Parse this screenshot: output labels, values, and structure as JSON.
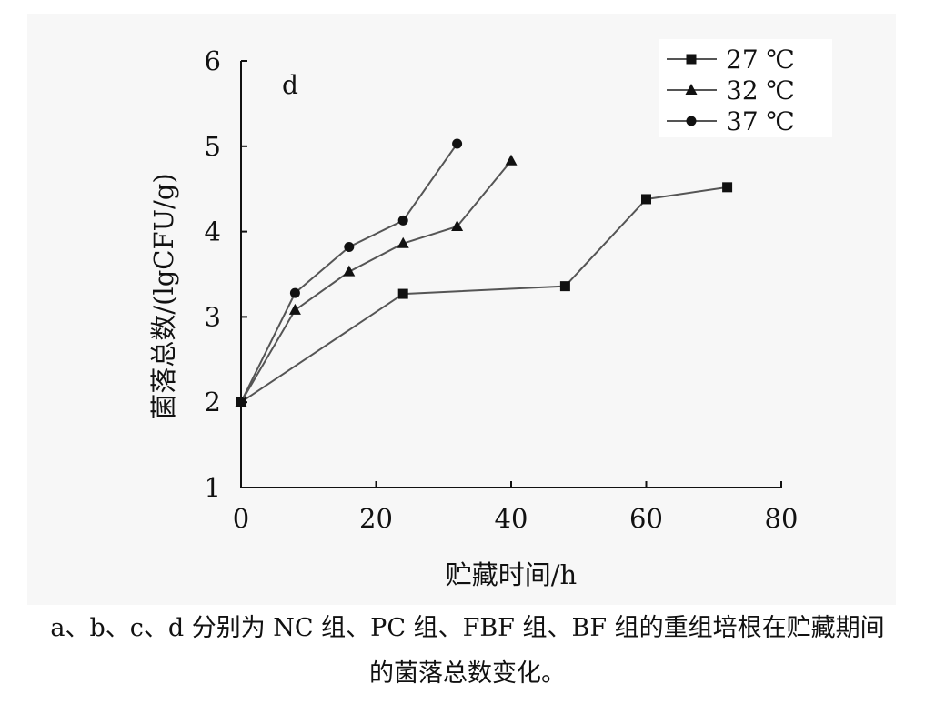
{
  "chart_data": {
    "type": "line",
    "panel_label": "d",
    "xlabel": "贮藏时间/h",
    "ylabel": "菌落总数/(lgCFU/g)",
    "xlim": [
      0,
      80
    ],
    "ylim": [
      1,
      6
    ],
    "x_ticks": [
      0,
      20,
      40,
      60,
      80
    ],
    "y_ticks": [
      1,
      2,
      3,
      4,
      5,
      6
    ],
    "grid": false,
    "legend_position": "top-right",
    "series": [
      {
        "name": "27 ℃",
        "marker": "square",
        "x": [
          0,
          24,
          48,
          60,
          72
        ],
        "y": [
          2.0,
          3.27,
          3.36,
          4.38,
          4.52
        ]
      },
      {
        "name": "32 ℃",
        "marker": "triangle",
        "x": [
          0,
          8,
          16,
          24,
          32,
          40
        ],
        "y": [
          2.0,
          3.08,
          3.53,
          3.86,
          4.06,
          4.83
        ]
      },
      {
        "name": "37 ℃",
        "marker": "circle",
        "x": [
          0,
          8,
          16,
          24,
          32
        ],
        "y": [
          2.0,
          3.28,
          3.82,
          4.13,
          5.03
        ]
      }
    ],
    "line_color": "#555555",
    "marker_color": "#111111"
  },
  "caption": {
    "line1": "a、b、c、d 分别为 NC 组、PC 组、FBF 组、BF 组的重组培根在贮藏期间",
    "line2": "的菌落总数变化。"
  }
}
